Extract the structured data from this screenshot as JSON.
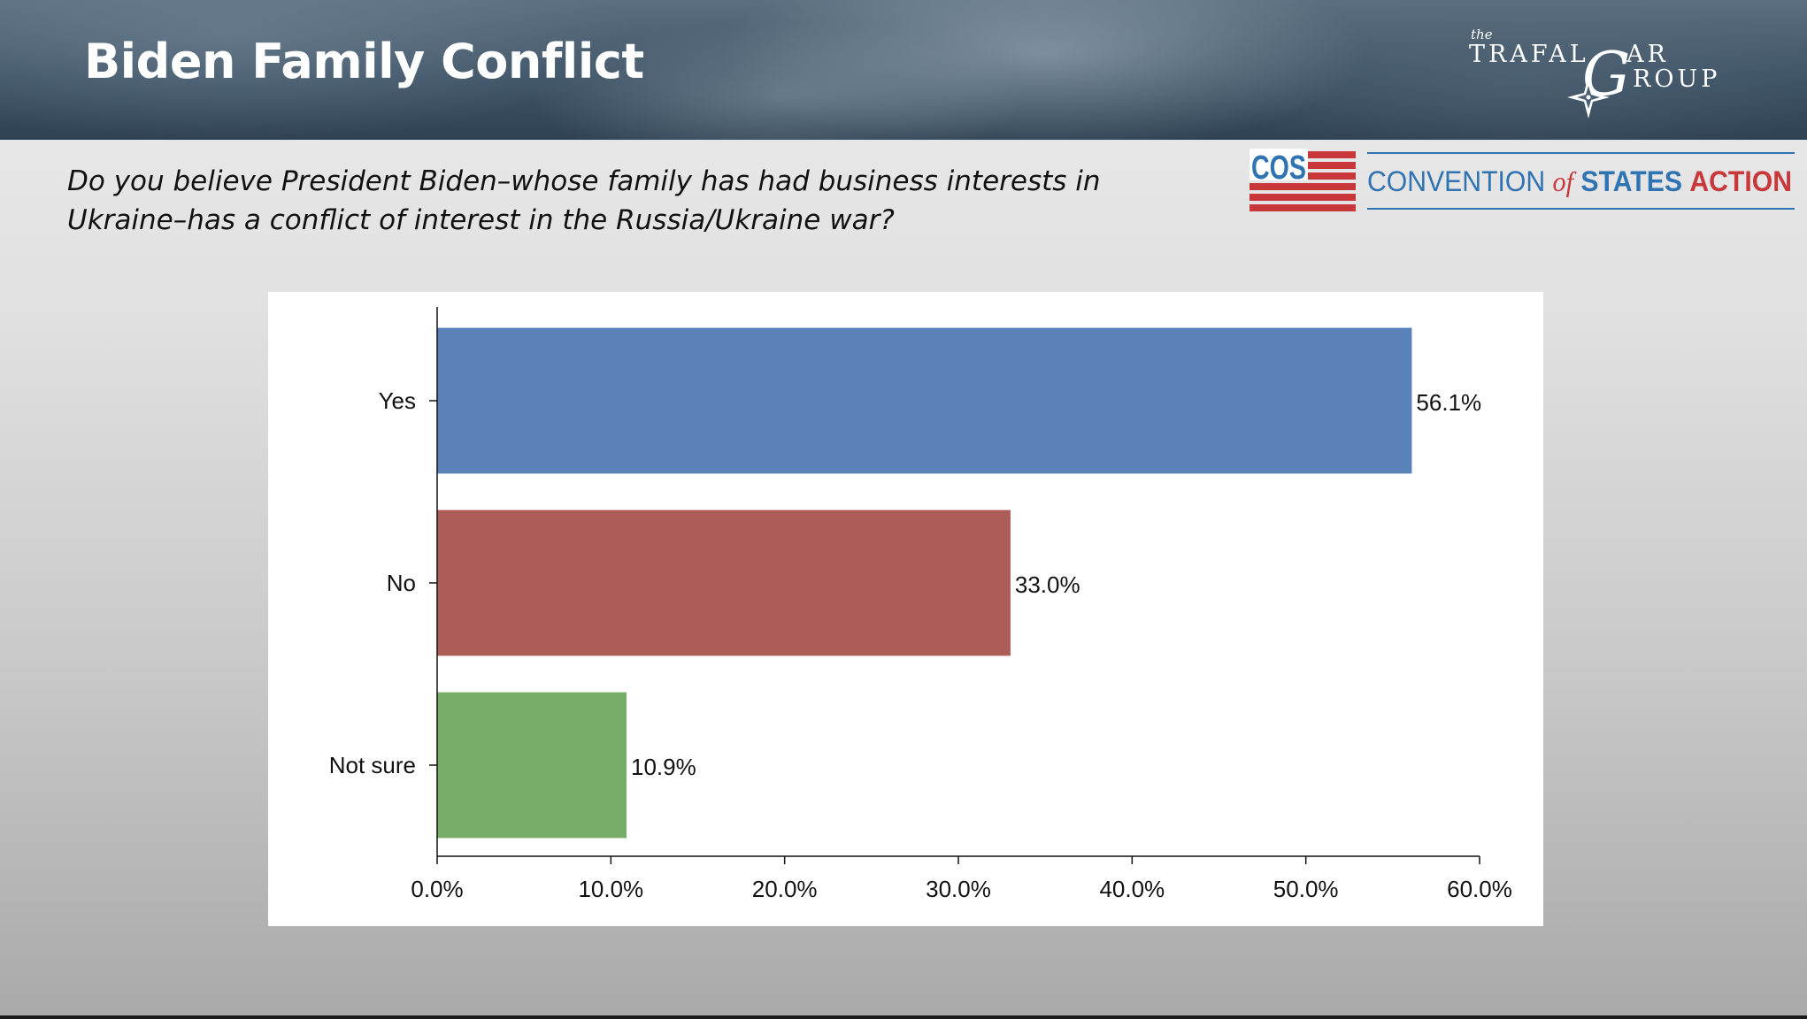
{
  "slide": {
    "title": "Biden Family Conflict",
    "question_line1": "Do you believe President Biden–whose family has had business interests in",
    "question_line2": "Ukraine–has a conflict of interest in the Russia/Ukraine war?"
  },
  "logos": {
    "trafalgar": {
      "small": "the",
      "line1": "TRAFAL",
      "big_letter": "G",
      "line1_end": "AR",
      "line2": "ROUP"
    },
    "cos": {
      "mark": "COS",
      "name_part1": "CONVENTION",
      "name_part2": "of",
      "name_part3": "STATES",
      "name_part4": "ACTION"
    }
  },
  "colors": {
    "yes": "#5a81b8",
    "no": "#ad5c57",
    "not_sure": "#77ad69",
    "cos_blue": "#2f73b3",
    "cos_red": "#c8373a"
  },
  "chart_data": {
    "type": "bar",
    "orientation": "horizontal",
    "categories": [
      "Yes",
      "No",
      "Not sure"
    ],
    "values": [
      56.1,
      33.0,
      10.9
    ],
    "value_labels": [
      "56.1%",
      "33.0%",
      "10.9%"
    ],
    "bar_colors": [
      "#5a81b8",
      "#ad5c57",
      "#77ad69"
    ],
    "xlim": [
      0,
      60
    ],
    "xticks": [
      0,
      10,
      20,
      30,
      40,
      50,
      60
    ],
    "xtick_labels": [
      "0.0%",
      "10.0%",
      "20.0%",
      "30.0%",
      "40.0%",
      "50.0%",
      "60.0%"
    ],
    "grid": false,
    "legend": "none"
  }
}
